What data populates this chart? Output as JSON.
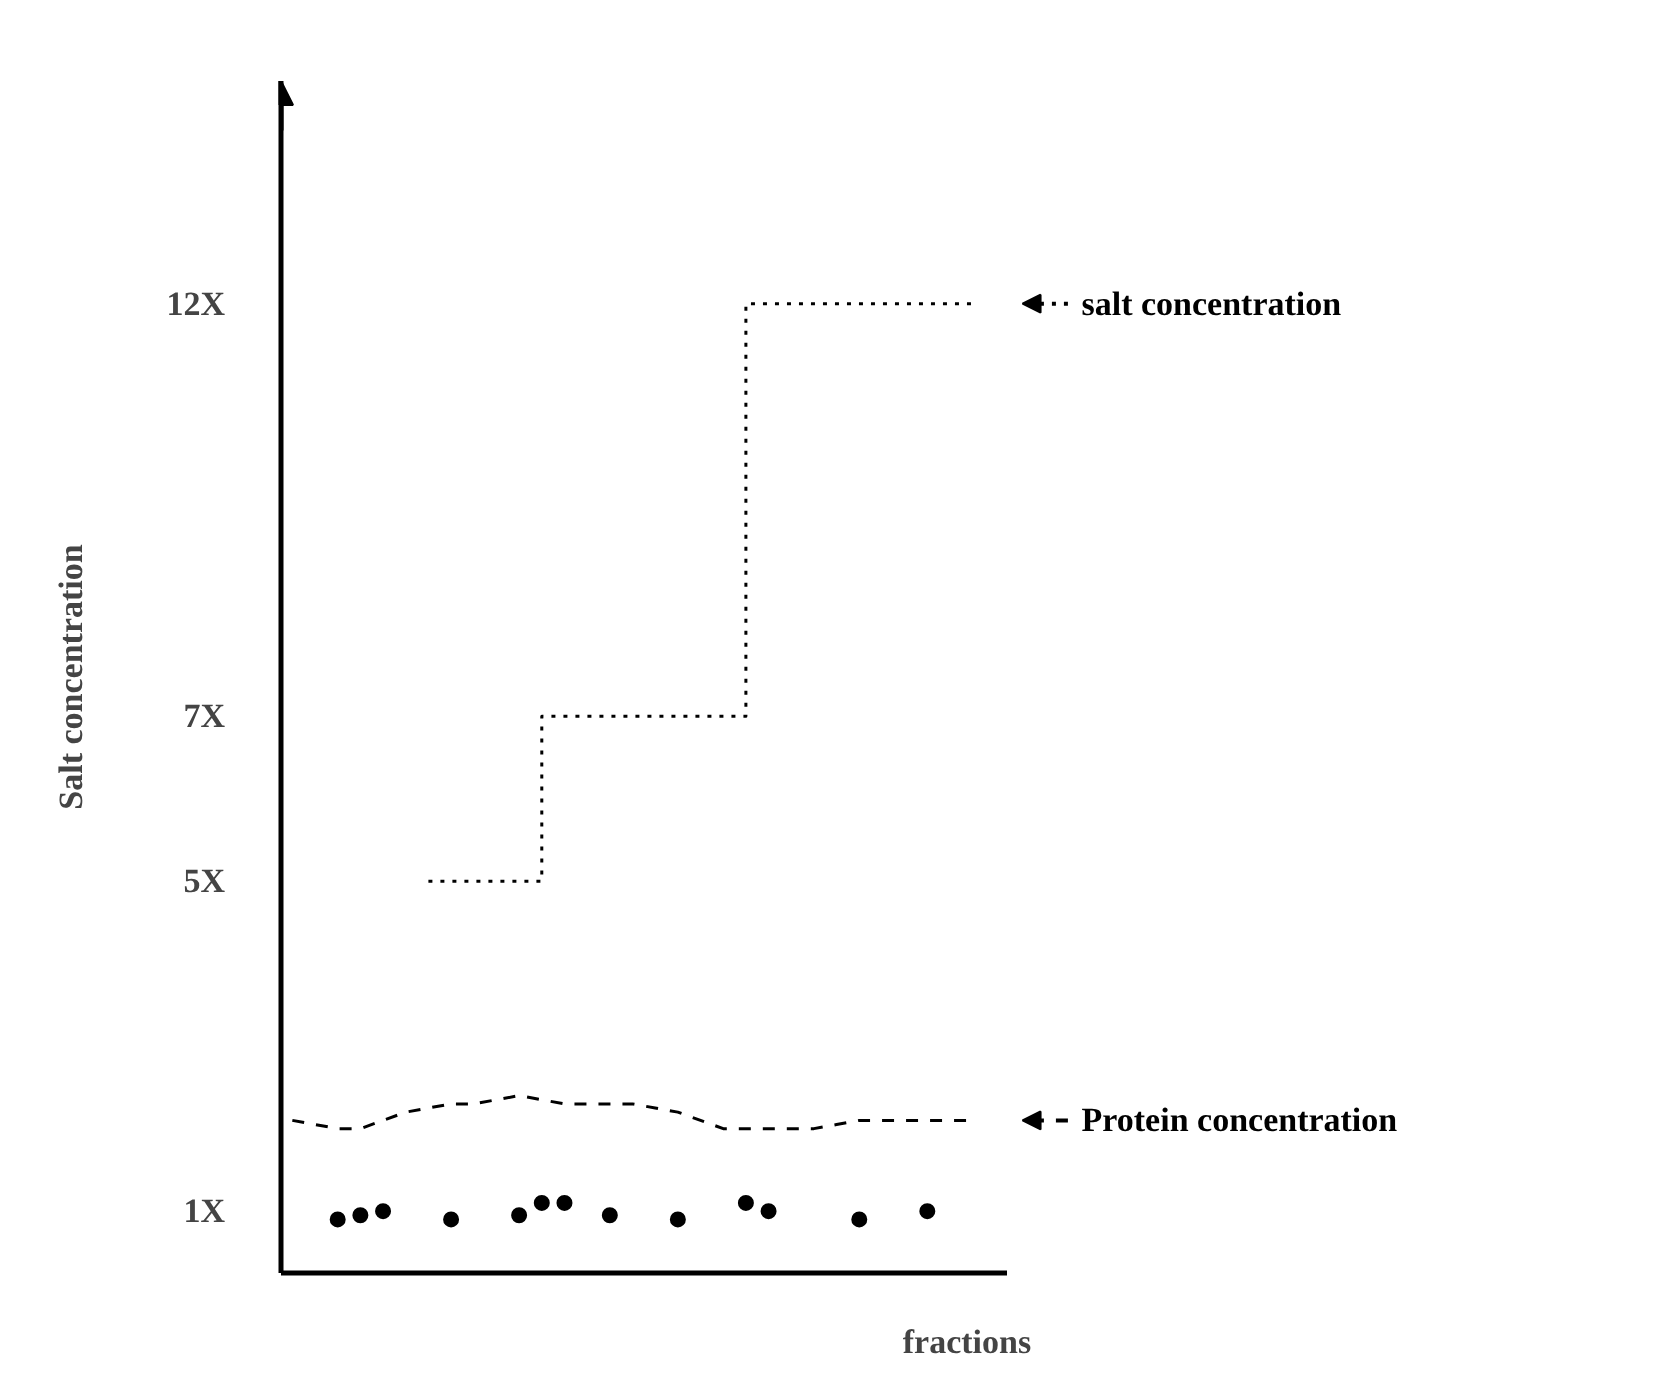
{
  "chart_data": {
    "type": "line",
    "xlabel": "fractions",
    "ylabel": "Salt concentration",
    "categories": [
      null,
      null,
      null,
      null,
      null,
      null,
      null,
      null,
      null,
      null,
      null,
      null,
      null,
      null,
      null,
      null,
      null,
      null,
      null,
      null,
      null,
      null,
      null,
      null,
      null,
      null,
      null,
      null,
      null,
      null,
      null
    ],
    "ylim": [
      0.25,
      14.7
    ],
    "yticks": [
      {
        "value": 1,
        "label": "1X"
      },
      {
        "value": 5,
        "label": "5X"
      },
      {
        "value": 7,
        "label": "7X"
      },
      {
        "value": 12,
        "label": "12X"
      }
    ],
    "grid": false,
    "legend": "right",
    "series": [
      {
        "name": "salt concentration",
        "type": "step",
        "color": "#000000",
        "line_style": "dotted",
        "values": [
          null,
          null,
          null,
          null,
          null,
          null,
          5,
          5,
          5,
          5,
          5,
          7,
          7,
          7,
          7,
          7,
          7,
          7,
          7,
          7,
          12,
          12,
          12,
          12,
          12,
          12,
          12,
          12,
          12,
          12,
          12
        ]
      },
      {
        "name": "Protein concentration",
        "color": "#000000",
        "line_style": "dashed",
        "values": [
          2.1,
          2.05,
          2.0,
          2.0,
          2.1,
          2.2,
          2.25,
          2.3,
          2.3,
          2.35,
          2.4,
          2.35,
          2.3,
          2.3,
          2.3,
          2.3,
          2.25,
          2.2,
          2.1,
          2.0,
          2.0,
          2.0,
          2.0,
          2.0,
          2.05,
          2.1,
          2.1,
          2.1,
          2.1,
          2.1,
          2.1
        ]
      },
      {
        "type": "scatter",
        "color": "#000000",
        "marker": "circle",
        "values": [
          null,
          null,
          0.9,
          0.95,
          1.0,
          null,
          null,
          0.9,
          null,
          null,
          0.95,
          1.1,
          1.1,
          null,
          0.95,
          null,
          null,
          0.9,
          null,
          null,
          1.1,
          1.0,
          null,
          null,
          null,
          0.9,
          null,
          null,
          1.0,
          null,
          null
        ]
      }
    ]
  }
}
